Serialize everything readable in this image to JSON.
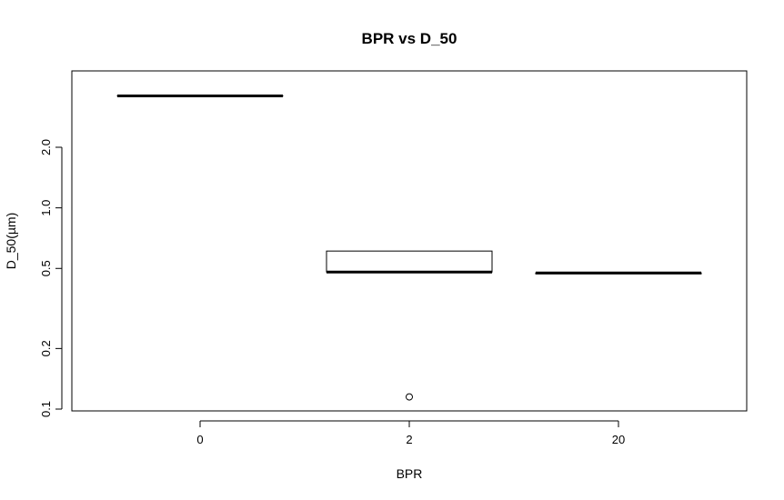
{
  "chart_data": {
    "type": "box",
    "title": "BPR vs D_50",
    "xlabel": "BPR",
    "ylabel": "D_50(µm)",
    "y_scale": "log",
    "ylim": [
      0.095,
      4.5
    ],
    "y_ticks": [
      {
        "value": 0.1,
        "label": "0.1"
      },
      {
        "value": 0.2,
        "label": "0.2"
      },
      {
        "value": 0.5,
        "label": "0.5"
      },
      {
        "value": 1.0,
        "label": "1.0"
      },
      {
        "value": 2.0,
        "label": "2.0"
      }
    ],
    "categories": [
      "0",
      "2",
      "20"
    ],
    "boxes": [
      {
        "category": "0",
        "min": 3.6,
        "q1": 3.6,
        "median": 3.6,
        "q3": 3.6,
        "max": 3.6,
        "outliers": []
      },
      {
        "category": "2",
        "min": 0.48,
        "q1": 0.48,
        "median": 0.48,
        "q3": 0.61,
        "max": 0.61,
        "outliers": [
          0.115
        ]
      },
      {
        "category": "20",
        "min": 0.47,
        "q1": 0.47,
        "median": 0.475,
        "q3": 0.475,
        "max": 0.475,
        "outliers": []
      }
    ],
    "grid": false,
    "legend": "none"
  }
}
